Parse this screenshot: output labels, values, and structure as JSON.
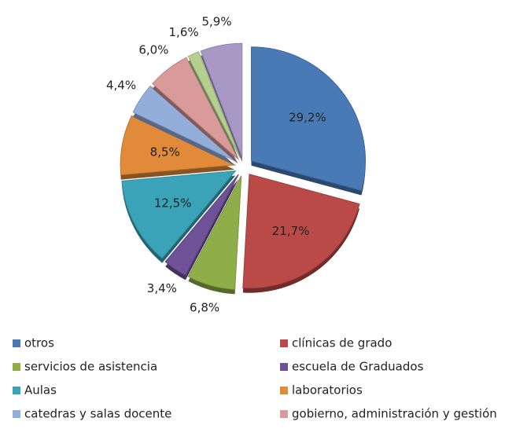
{
  "chart_data": {
    "type": "pie",
    "categories": [
      "otros",
      "clínicas de grado",
      "servicios de asistencia",
      "escuela de Graduados",
      "Aulas",
      "laboratorios",
      "catedras y salas docente",
      "gobierno, administración y gestión",
      null,
      null
    ],
    "values": [
      29.2,
      21.7,
      6.8,
      3.4,
      12.5,
      8.5,
      4.4,
      6.0,
      1.6,
      5.9
    ],
    "value_labels": [
      "29,2%",
      "21,7%",
      "6,8%",
      "3,4%",
      "12,5%",
      "8,5%",
      "4,4%",
      "6,0%",
      "1,6%",
      "5,9%"
    ],
    "colors": [
      "#4a7ab5",
      "#b94a48",
      "#8fae4a",
      "#6e5196",
      "#3aa3b8",
      "#e08a3a",
      "#94aedb",
      "#d99a9a",
      "#b5cf8e",
      "#a898c6"
    ],
    "legend": "bottom"
  }
}
